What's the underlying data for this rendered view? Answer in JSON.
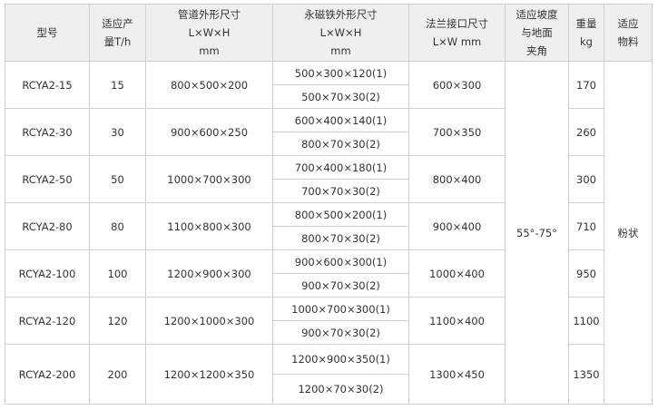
{
  "headers": {
    "model": "型号",
    "capacity": [
      "适应产",
      "量T/h"
    ],
    "pipe": [
      "管道外形尺寸",
      "L×W×H",
      "mm"
    ],
    "magnet": [
      "永磁铁外形尺寸",
      "L×W×H",
      "mm"
    ],
    "flange": [
      "法兰接口尺寸",
      "L×W  mm"
    ],
    "slope": [
      "适应坡度",
      "与地面",
      "夹角"
    ],
    "weight": [
      "重量",
      "kg"
    ],
    "material": [
      "适应",
      "物料"
    ]
  },
  "slope_value": "55°-75°",
  "material_value": "粉状",
  "rows": [
    {
      "model": "RCYA2-15",
      "capacity": "15",
      "pipe": "800×500×200",
      "magnet1": "500×300×120(1)",
      "magnet2": "500×70×30(2)",
      "flange": "600×300",
      "weight": "170"
    },
    {
      "model": "RCYA2-30",
      "capacity": "30",
      "pipe": "900×600×250",
      "magnet1": "600×400×140(1)",
      "magnet2": "800×70×30(2)",
      "flange": "700×350",
      "weight": "260"
    },
    {
      "model": "RCYA2-50",
      "capacity": "50",
      "pipe": "1000×700×300",
      "magnet1": "700×400×180(1)",
      "magnet2": "700×70×30(2)",
      "flange": "800×400",
      "weight": "300"
    },
    {
      "model": "RCYA2-80",
      "capacity": "80",
      "pipe": "1100×800×300",
      "magnet1": "800×500×200(1)",
      "magnet2": "800×70×30(2)",
      "flange": "900×400",
      "weight": "710"
    },
    {
      "model": "RCYA2-100",
      "capacity": "100",
      "pipe": "1200×900×300",
      "magnet1": "900×600×300(1)",
      "magnet2": "900×70×30(2)",
      "flange": "1000×400",
      "weight": "950"
    },
    {
      "model": "RCYA2-120",
      "capacity": "120",
      "pipe": "1200×1000×300",
      "magnet1": "1000×700×300(1)",
      "magnet2": "900×70×30(2)",
      "flange": "1100×400",
      "weight": "1100"
    },
    {
      "model": "RCYA2-200",
      "capacity": "200",
      "pipe": "1200×1200×350",
      "magnet1": "1200×900×350(1)",
      "magnet2": "1200×70×30(2)",
      "flange": "1300×450",
      "weight": "1350"
    }
  ]
}
